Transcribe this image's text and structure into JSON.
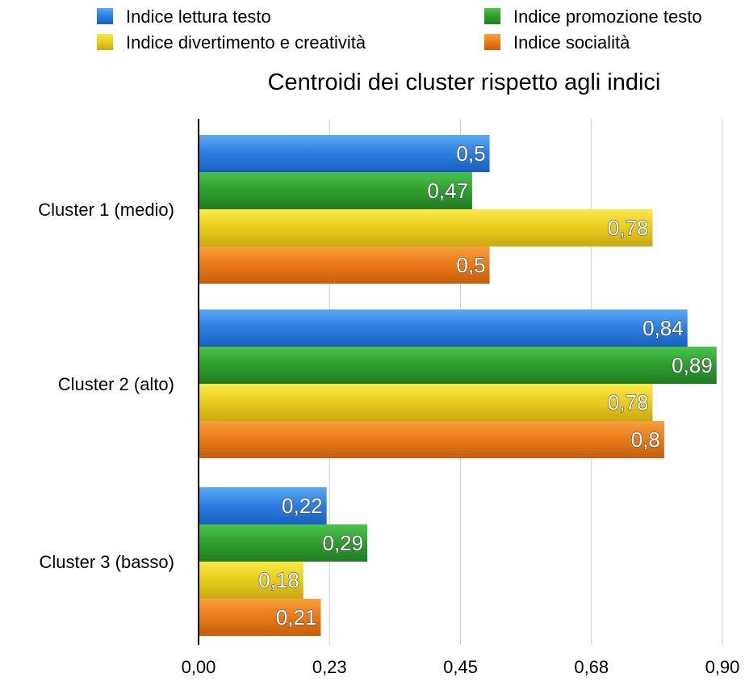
{
  "chart_data": {
    "type": "bar",
    "orientation": "horizontal",
    "title": "Centroidi dei cluster rispetto agli indici",
    "categories": [
      "Cluster 1 (medio)",
      "Cluster 2 (alto)",
      "Cluster 3 (basso)"
    ],
    "series": [
      {
        "name": "Indice lettura testo",
        "color": "#2b7ee0",
        "values": [
          0.5,
          0.84,
          0.22
        ],
        "labels": [
          "0,5",
          "0,84",
          "0,22"
        ]
      },
      {
        "name": "Indice promozione testo",
        "color": "#2e9e2e",
        "values": [
          0.47,
          0.89,
          0.29
        ],
        "labels": [
          "0,47",
          "0,89",
          "0,29"
        ]
      },
      {
        "name": "Indice divertimento e creatività",
        "color": "#e8cc1c",
        "values": [
          0.78,
          0.78,
          0.18
        ],
        "labels": [
          "0,78",
          "0,78",
          "0,18"
        ]
      },
      {
        "name": "Indice socialità",
        "color": "#e87a16",
        "values": [
          0.5,
          0.8,
          0.21
        ],
        "labels": [
          "0,5",
          "0,8",
          "0,21"
        ]
      }
    ],
    "xlim": [
      0,
      0.9
    ],
    "xticks": [
      0,
      0.225,
      0.45,
      0.675,
      0.9
    ],
    "xtick_labels": [
      "0,00",
      "0,23",
      "0,45",
      "0,68",
      "0,90"
    ],
    "grid": true,
    "legend_position": "top"
  }
}
